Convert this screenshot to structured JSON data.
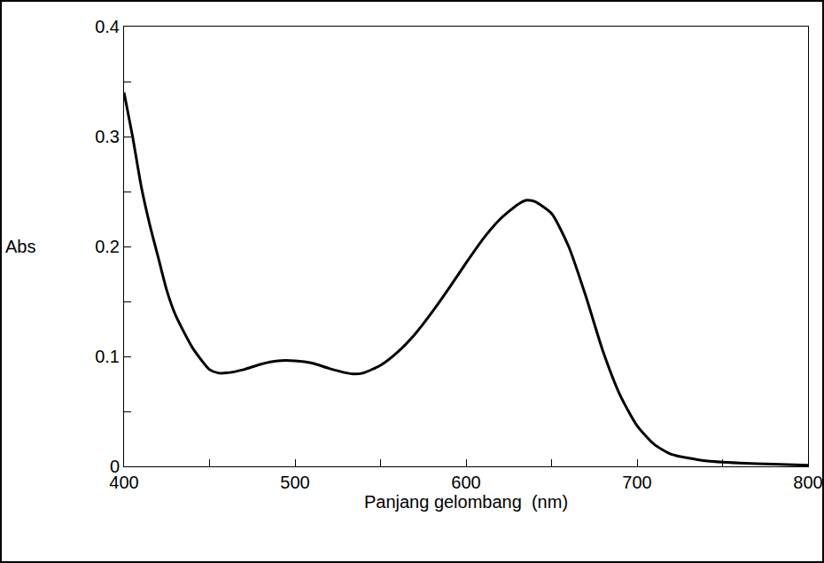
{
  "chart_data": {
    "type": "line",
    "x_label": "Panjang gelombang  (nm)",
    "y_label": "Abs",
    "x": [
      400,
      405,
      410,
      415,
      420,
      425,
      430,
      440,
      450,
      455,
      460,
      470,
      480,
      490,
      500,
      510,
      520,
      530,
      535,
      540,
      550,
      560,
      570,
      580,
      590,
      600,
      610,
      620,
      630,
      635,
      640,
      650,
      660,
      670,
      680,
      690,
      700,
      710,
      720,
      740,
      760,
      780,
      800
    ],
    "values": [
      0.34,
      0.3,
      0.255,
      0.22,
      0.19,
      0.16,
      0.138,
      0.108,
      0.088,
      0.085,
      0.085,
      0.088,
      0.093,
      0.096,
      0.096,
      0.094,
      0.089,
      0.085,
      0.084,
      0.085,
      0.092,
      0.104,
      0.12,
      0.14,
      0.162,
      0.185,
      0.207,
      0.225,
      0.238,
      0.242,
      0.241,
      0.23,
      0.2,
      0.155,
      0.105,
      0.065,
      0.037,
      0.02,
      0.011,
      0.005,
      0.003,
      0.002,
      0.001
    ],
    "color": "#000000",
    "line_style": "solid",
    "xlim": [
      400,
      800
    ],
    "xticks": [
      400,
      500,
      600,
      700,
      800
    ],
    "ylim": [
      0,
      0.4
    ],
    "yticks": [
      0,
      0.1,
      0.2,
      0.3,
      0.4
    ],
    "grid": false
  }
}
